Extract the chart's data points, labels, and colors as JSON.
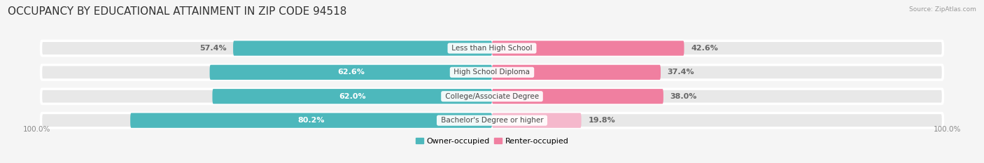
{
  "title": "OCCUPANCY BY EDUCATIONAL ATTAINMENT IN ZIP CODE 94518",
  "source": "Source: ZipAtlas.com",
  "categories": [
    "Less than High School",
    "High School Diploma",
    "College/Associate Degree",
    "Bachelor's Degree or higher"
  ],
  "owner_pct": [
    57.4,
    62.6,
    62.0,
    80.2
  ],
  "renter_pct": [
    42.6,
    37.4,
    38.0,
    19.8
  ],
  "owner_color": "#4db8bc",
  "renter_color": "#f07fa0",
  "renter_light_color": "#f5b8cc",
  "background_color": "#f5f5f5",
  "bar_bg_color": "#e8e8e8",
  "bar_separator_color": "#ffffff",
  "title_fontsize": 11,
  "label_fontsize": 8,
  "axis_label_fontsize": 7.5,
  "legend_fontsize": 8,
  "bar_height": 0.62,
  "owner_label_outside": [
    true,
    false,
    false,
    false
  ],
  "axis_left_label": "100.0%",
  "axis_right_label": "100.0%"
}
